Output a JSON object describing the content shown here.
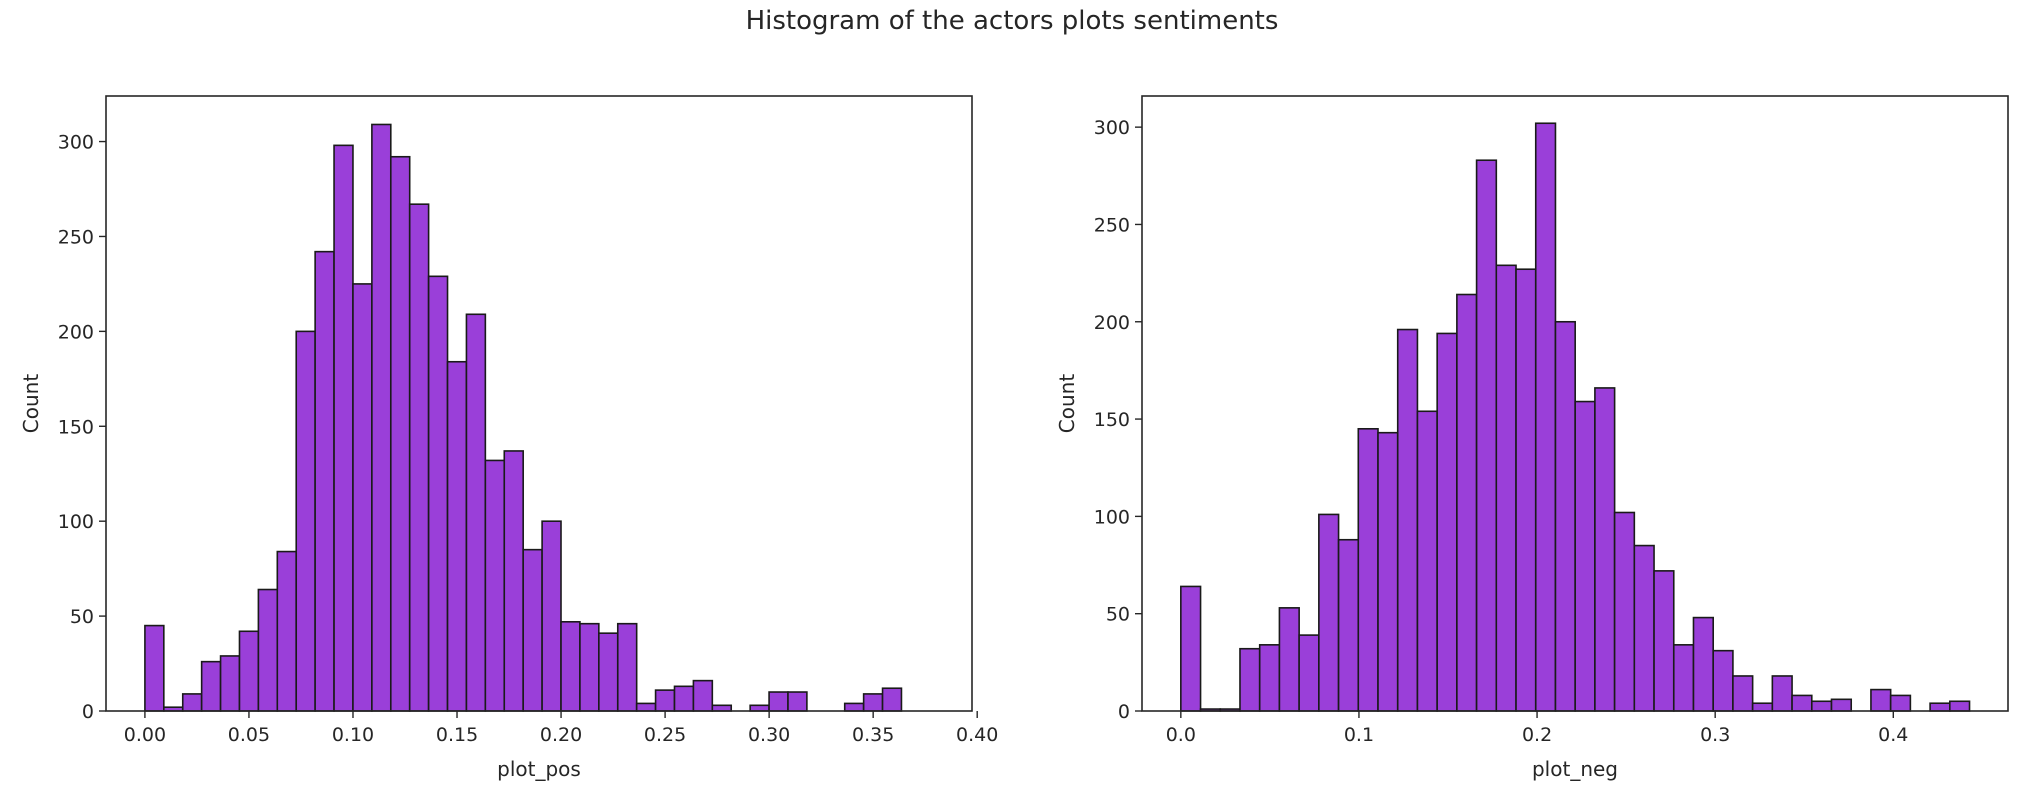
{
  "figure": {
    "title": "Histogram of the actors plots sentiments"
  },
  "chart_data": [
    {
      "type": "bar",
      "subtype": "histogram",
      "xlabel": "plot_pos",
      "ylabel": "Count",
      "xlim": [
        -0.0187,
        0.3975
      ],
      "ylim": [
        0,
        324
      ],
      "xticks": [
        0.0,
        0.05,
        0.1,
        0.15,
        0.2,
        0.25,
        0.3,
        0.35,
        0.4
      ],
      "xtick_labels": [
        "0.00",
        "0.05",
        "0.10",
        "0.15",
        "0.20",
        "0.25",
        "0.30",
        "0.35",
        "0.40"
      ],
      "yticks": [
        0,
        50,
        100,
        150,
        200,
        250,
        300
      ],
      "ytick_labels": [
        "0",
        "50",
        "100",
        "150",
        "200",
        "250",
        "300"
      ],
      "bin_start": 0.0,
      "bin_width": 0.00909,
      "values": [
        45,
        2,
        9,
        26,
        29,
        42,
        64,
        84,
        200,
        242,
        298,
        225,
        309,
        292,
        267,
        229,
        184,
        209,
        132,
        137,
        85,
        100,
        47,
        46,
        41,
        46,
        4,
        11,
        13,
        16,
        3,
        0,
        3,
        10,
        10,
        0,
        0,
        4,
        9,
        12
      ],
      "bar_color": "#9a3fd9",
      "edge_color": "#1a1a1a"
    },
    {
      "type": "bar",
      "subtype": "histogram",
      "xlabel": "plot_neg",
      "ylabel": "Count",
      "xlim": [
        -0.0218,
        0.4644
      ],
      "ylim": [
        0,
        316
      ],
      "xticks": [
        0.0,
        0.1,
        0.2,
        0.3,
        0.4
      ],
      "xtick_labels": [
        "0.0",
        "0.1",
        "0.2",
        "0.3",
        "0.4"
      ],
      "yticks": [
        0,
        50,
        100,
        150,
        200,
        250,
        300
      ],
      "ytick_labels": [
        "0",
        "50",
        "100",
        "150",
        "200",
        "250",
        "300"
      ],
      "bin_start": 0.0,
      "bin_width": 0.01107,
      "values": [
        64,
        1,
        1,
        32,
        34,
        53,
        39,
        101,
        88,
        145,
        143,
        196,
        154,
        194,
        214,
        283,
        229,
        227,
        302,
        200,
        159,
        166,
        102,
        85,
        72,
        34,
        48,
        31,
        18,
        4,
        18,
        8,
        5,
        6,
        0,
        11,
        8,
        0,
        4,
        5
      ],
      "bar_color": "#9a3fd9",
      "edge_color": "#1a1a1a"
    }
  ]
}
